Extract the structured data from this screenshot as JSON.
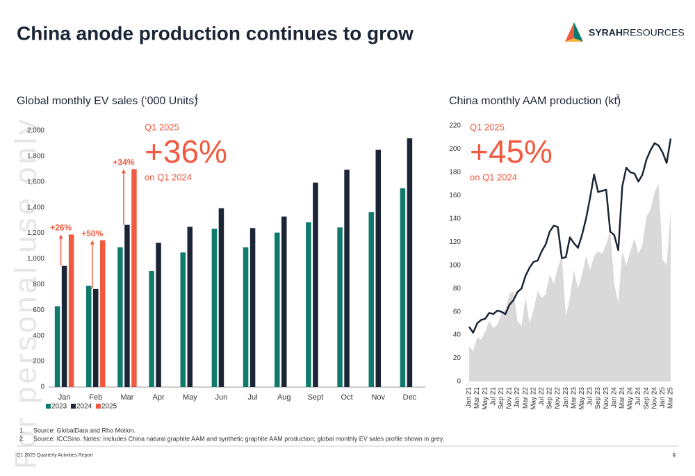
{
  "header": {
    "title": "China anode production continues to grow",
    "logo_bold": "SYRAH",
    "logo_light": "RESOURCES"
  },
  "watermark": "For personal use only",
  "chart_data": [
    {
      "type": "bar",
      "title": "Global monthly EV sales (‘000 Units)",
      "title_sup": "1",
      "categories": [
        "Jan",
        "Feb",
        "Mar",
        "Apr",
        "May",
        "Jun",
        "Jul",
        "Aug",
        "Sept",
        "Oct",
        "Nov",
        "Dec"
      ],
      "series": [
        {
          "name": "2023",
          "color": "#0f7a6b",
          "values": [
            630,
            790,
            1090,
            905,
            1050,
            1235,
            1090,
            1205,
            1285,
            1245,
            1365,
            1550
          ]
        },
        {
          "name": "2024",
          "color": "#1b2535",
          "values": [
            945,
            765,
            1265,
            1125,
            1250,
            1395,
            1240,
            1330,
            1595,
            1695,
            1850,
            1940
          ]
        },
        {
          "name": "2025",
          "color": "#f05a40",
          "values": [
            1190,
            1145,
            1700,
            null,
            null,
            null,
            null,
            null,
            null,
            null,
            null,
            null
          ]
        }
      ],
      "ylim": [
        0,
        2000
      ],
      "yticks": [
        0,
        200,
        400,
        600,
        800,
        {
          "value": 1000,
          "label": "1,000"
        },
        {
          "value": 1200,
          "label": "1,200"
        },
        {
          "value": 1400,
          "label": "1,400"
        },
        {
          "value": 1600,
          "label": "1,600"
        },
        {
          "value": 1800,
          "label": "1,800"
        },
        {
          "value": 2000,
          "label": "2,000"
        }
      ],
      "annotations": [
        "+26%",
        "+50%",
        "+34%"
      ],
      "callout": {
        "top": "Q1 2025",
        "big": "+36%",
        "bottom": "on Q1 2024"
      }
    },
    {
      "type": "line",
      "title": "China monthly AAM production (kt)",
      "title_sup": "2",
      "categories": [
        "Jan 21",
        null,
        "Mar 21",
        null,
        "May 21",
        null,
        "Jul 21",
        null,
        "Sep 21",
        null,
        "Nov 21",
        null,
        "Jan 22",
        null,
        "Mar 22",
        null,
        "May 22",
        null,
        "Jul 22",
        null,
        "Sep 22",
        null,
        "Nov 22",
        null,
        "Jan 23",
        null,
        "Mar 23",
        null,
        "May 23",
        null,
        "Jul 23",
        null,
        "Sep 23",
        null,
        "Nov 23",
        null,
        "Jan 24",
        null,
        "Mar 24",
        null,
        "May 24",
        null,
        "Jul 24",
        null,
        "Sep 24",
        null,
        "Nov 24",
        null,
        "Jan 25",
        null,
        "Mar 25"
      ],
      "series": [
        {
          "color": "#d9d9d9",
          "values": [
            30,
            26,
            38,
            36,
            43,
            52,
            46,
            49,
            58,
            62,
            75,
            78,
            52,
            48,
            72,
            50,
            62,
            78,
            72,
            75,
            92,
            84,
            98,
            108,
            56,
            72,
            96,
            80,
            92,
            108,
            96,
            108,
            112,
            110,
            118,
            130,
            84,
            68,
            112,
            100,
            112,
            123,
            110,
            118,
            142,
            148,
            163,
            170,
            105,
            100,
            148
          ]
        },
        {
          "color": "#1b2535",
          "values": [
            47,
            42,
            50,
            53,
            54,
            59,
            58,
            61,
            60,
            58,
            66,
            70,
            77,
            80,
            91,
            98,
            103,
            104,
            112,
            118,
            129,
            134,
            133,
            106,
            107,
            124,
            119,
            115,
            126,
            140,
            158,
            178,
            163,
            164,
            165,
            129,
            126,
            113,
            168,
            184,
            180,
            179,
            172,
            178,
            191,
            199,
            205,
            203,
            197,
            188,
            209
          ]
        }
      ],
      "ylim": [
        0,
        220
      ],
      "yticks": [
        0,
        20,
        40,
        60,
        80,
        100,
        120,
        140,
        160,
        180,
        200,
        220
      ],
      "callout": {
        "top": "Q1 2025",
        "big": "+45%",
        "bottom": "on Q1 2024"
      }
    }
  ],
  "footnotes": [
    {
      "num": "1.",
      "text": "Source: GlobalData and Rho Motion."
    },
    {
      "num": "2.",
      "text": "Source: ICCSino. Notes: Includes China natural graphite AAM and synthetic graphite AAM production; global monthly EV sales profile shown in grey."
    }
  ],
  "footer": {
    "left": "Q1 2025 Quarterly Activities Report",
    "page": "9"
  }
}
